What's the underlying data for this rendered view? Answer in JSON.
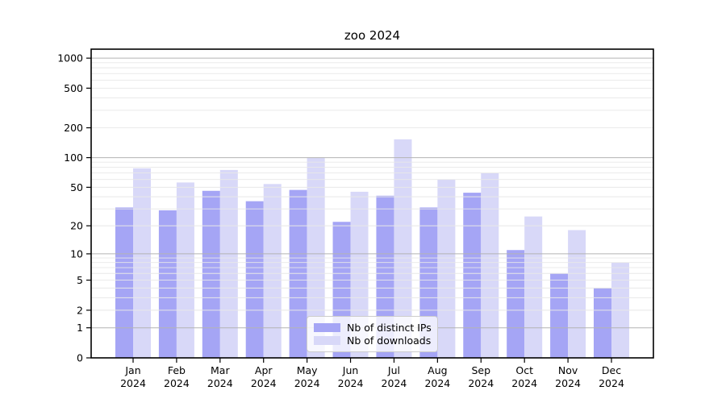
{
  "figure": {
    "title": "zoo 2024"
  },
  "chart_data": {
    "type": "bar",
    "title": "zoo 2024",
    "xlabel": "",
    "ylabel": "",
    "yscale": "log1p",
    "grid": true,
    "legend_position": "lower center",
    "ylim": [
      0,
      1230
    ],
    "yticks": [
      0,
      1,
      2,
      5,
      10,
      20,
      50,
      100,
      200,
      500,
      1000
    ],
    "ytick_major": [
      1,
      10,
      100,
      1000
    ],
    "categories": [
      "Jan 2024",
      "Feb 2024",
      "Mar 2024",
      "Apr 2024",
      "May 2024",
      "Jun 2024",
      "Jul 2024",
      "Aug 2024",
      "Sep 2024",
      "Oct 2024",
      "Nov 2024",
      "Dec 2024"
    ],
    "series": [
      {
        "name": "Nb of distinct IPs",
        "color": "#a5a5f5",
        "values": [
          31,
          29,
          46,
          36,
          47,
          22,
          41,
          31,
          44,
          11,
          6,
          4
        ]
      },
      {
        "name": "Nb of downloads",
        "color": "#d8d8f8",
        "values": [
          78,
          56,
          75,
          54,
          100,
          45,
          153,
          60,
          70,
          25,
          18,
          8
        ]
      }
    ],
    "colors": {
      "axis": "#000000",
      "grid_major": "#b3b3b3",
      "grid_minor": "#e8e8e8",
      "tick_label": "#000000"
    }
  }
}
